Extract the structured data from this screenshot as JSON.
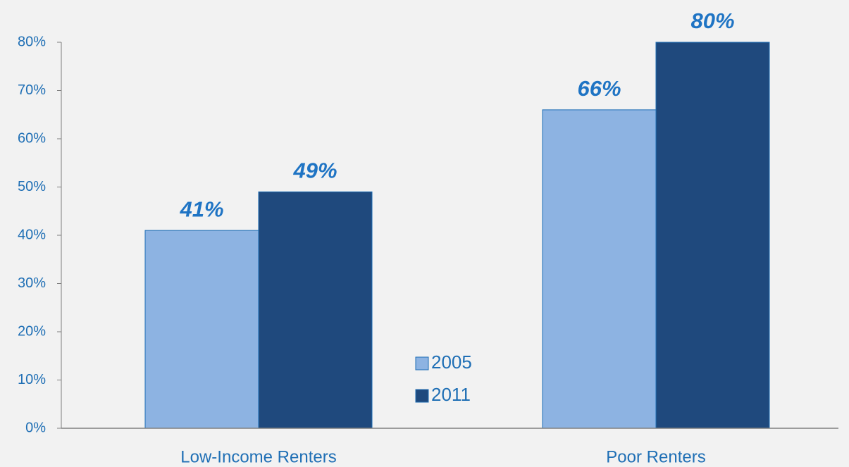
{
  "chart_data": {
    "type": "bar",
    "categories": [
      "Low-Income Renters",
      "Poor Renters"
    ],
    "series": [
      {
        "name": "2005",
        "color": "#8db3e2",
        "values": [
          41,
          66
        ],
        "value_labels": [
          "41%",
          "66%"
        ]
      },
      {
        "name": "2011",
        "color": "#1f497d",
        "values": [
          49,
          80
        ],
        "value_labels": [
          "49%",
          "80%"
        ]
      }
    ],
    "ylim": [
      0,
      80
    ],
    "yticks": [
      {
        "value": 0,
        "label": "0%"
      },
      {
        "value": 10,
        "label": "10%"
      },
      {
        "value": 20,
        "label": "20%"
      },
      {
        "value": 30,
        "label": "30%"
      },
      {
        "value": 40,
        "label": "40%"
      },
      {
        "value": 50,
        "label": "50%"
      },
      {
        "value": 60,
        "label": "60%"
      },
      {
        "value": 70,
        "label": "70%"
      },
      {
        "value": 80,
        "label": "80%"
      }
    ],
    "grid": false
  }
}
